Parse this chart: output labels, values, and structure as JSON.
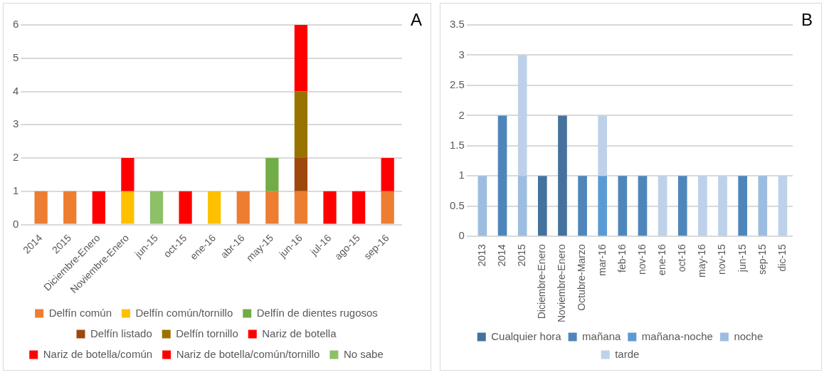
{
  "chart_data": [
    {
      "type": "bar",
      "stacked": true,
      "annotations": [
        "A"
      ],
      "categories": [
        "2014",
        "2015",
        "Diciembre-Enero",
        "Noviembre-Enero",
        "jun-15",
        "oct-15",
        "ene-16",
        "abr-16",
        "may-15",
        "jun-16",
        "jul-16",
        "ago-15",
        "sep-16"
      ],
      "series": [
        {
          "name": "Delfín común",
          "color": "#ed7d31",
          "values": [
            1,
            1,
            null,
            null,
            null,
            null,
            null,
            1,
            1,
            1,
            null,
            null,
            1
          ]
        },
        {
          "name": "Delfín común/tornillo",
          "color": "#ffc000",
          "values": [
            null,
            null,
            null,
            1,
            null,
            null,
            1,
            null,
            null,
            null,
            null,
            null,
            null
          ]
        },
        {
          "name": "Delfín de dientes rugosos",
          "color": "#70ad47",
          "values": [
            null,
            null,
            null,
            null,
            null,
            null,
            null,
            null,
            1,
            null,
            null,
            null,
            null
          ]
        },
        {
          "name": "Delfín listado",
          "color": "#9e480e",
          "values": [
            null,
            null,
            null,
            null,
            null,
            null,
            null,
            null,
            null,
            1,
            null,
            null,
            null
          ]
        },
        {
          "name": "Delfín tornillo",
          "color": "#997300",
          "values": [
            null,
            null,
            null,
            null,
            null,
            null,
            null,
            null,
            null,
            2,
            null,
            null,
            null
          ]
        },
        {
          "name": "Nariz de botella",
          "color": "#ff0000",
          "values": [
            null,
            null,
            1,
            1,
            null,
            1,
            null,
            null,
            null,
            2,
            1,
            1,
            1
          ]
        },
        {
          "name": "Nariz de botella/común",
          "color": "#ff0000",
          "values": [
            null,
            null,
            null,
            null,
            null,
            null,
            null,
            null,
            null,
            null,
            null,
            null,
            null
          ]
        },
        {
          "name": "Nariz de botella/común/tornillo",
          "color": "#ff0000",
          "values": [
            null,
            null,
            null,
            null,
            null,
            null,
            null,
            null,
            null,
            null,
            null,
            null,
            null
          ]
        },
        {
          "name": "No sabe",
          "color": "#8cc168",
          "values": [
            null,
            null,
            null,
            null,
            1,
            null,
            null,
            null,
            null,
            null,
            null,
            null,
            null
          ]
        }
      ],
      "ylim": [
        0,
        6
      ],
      "yticks": [
        0,
        1,
        2,
        3,
        4,
        5,
        6
      ],
      "grid": "y",
      "legend": "bottom"
    },
    {
      "type": "bar",
      "stacked": true,
      "annotations": [
        "B"
      ],
      "categories": [
        "2013",
        "2014",
        "2015",
        "Diciembre-Enero",
        "Noviembre-Enero",
        "Octubre-Marzo",
        "mar-16",
        "feb-16",
        "nov-16",
        "ene-16",
        "oct-16",
        "may-16",
        "nov-15",
        "jun-15",
        "sep-15",
        "dic-15"
      ],
      "series": [
        {
          "name": "Cualquier hora",
          "color": "#44729d",
          "values": [
            null,
            null,
            null,
            1,
            2,
            null,
            null,
            null,
            null,
            null,
            null,
            null,
            null,
            null,
            null,
            null
          ]
        },
        {
          "name": "mañana",
          "color": "#4e86bb",
          "values": [
            null,
            2,
            null,
            null,
            null,
            1,
            null,
            1,
            1,
            null,
            1,
            null,
            null,
            1,
            null,
            null
          ]
        },
        {
          "name": "mañana-noche",
          "color": "#5b9bd5",
          "values": [
            null,
            null,
            null,
            null,
            null,
            null,
            1,
            null,
            null,
            null,
            null,
            null,
            null,
            null,
            null,
            null
          ]
        },
        {
          "name": "noche",
          "color": "#9dbde0",
          "values": [
            1,
            null,
            1,
            null,
            null,
            null,
            null,
            null,
            null,
            null,
            null,
            null,
            null,
            null,
            1,
            null
          ]
        },
        {
          "name": "tarde",
          "color": "#bdd1ea",
          "values": [
            null,
            null,
            2,
            null,
            null,
            null,
            1,
            null,
            null,
            1,
            null,
            1,
            1,
            null,
            null,
            1
          ]
        }
      ],
      "ylim": [
        0,
        3.5
      ],
      "yticks": [
        0,
        0.5,
        1,
        1.5,
        2,
        2.5,
        3,
        3.5
      ],
      "grid": "y",
      "legend": "bottom"
    }
  ]
}
